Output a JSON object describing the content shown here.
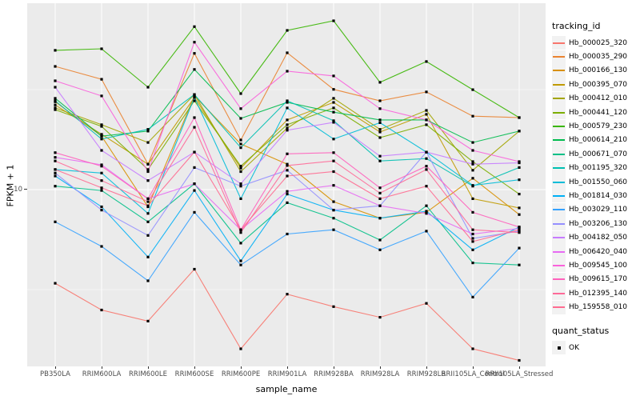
{
  "axes": {
    "x_title": "sample_name",
    "y_title": "FPKM + 1",
    "y_tick_label": "10"
  },
  "legend": {
    "tracking_title": "tracking_id",
    "quant_title": "quant_status",
    "quant_label": "OK"
  },
  "chart_data": {
    "type": "line",
    "title": "",
    "xlabel": "sample_name",
    "ylabel": "FPKM + 1",
    "y_scale": "log10",
    "y_tick_values": [
      10
    ],
    "y_minor_tick_values": [
      3.162,
      31.62
    ],
    "y_range_approx": [
      1.3,
      85
    ],
    "grid": "on",
    "legend_position": "right",
    "panel_background": "#EBEBEB",
    "point_color": "#000000",
    "point_shape": "square",
    "categories": [
      "PB350LA",
      "RRIM600LA",
      "RRIM600LE",
      "RRIM600SE",
      "RRIM600PE",
      "RRIM901LA",
      "RRIM928BA",
      "RRIM928LA",
      "RRIM928LB",
      "RRII105LA_Control",
      "RRII105LA_Stressed"
    ],
    "series": [
      {
        "name": "Hb_000025_320",
        "color": "#F8766D",
        "values": [
          3.4,
          2.5,
          2.2,
          4.0,
          1.6,
          3.0,
          2.6,
          2.3,
          2.7,
          1.6,
          1.4
        ]
      },
      {
        "name": "Hb_000035_290",
        "color": "#EA8331",
        "values": [
          41.3,
          35.6,
          13.4,
          48.0,
          17.7,
          48.3,
          31.7,
          27.8,
          30.8,
          23.3,
          22.9
        ]
      },
      {
        "name": "Hb_000166_130",
        "color": "#D89000",
        "values": [
          27.5,
          18.5,
          8.2,
          29.4,
          16.9,
          13.4,
          8.7,
          7.2,
          7.7,
          11.4,
          7.5
        ]
      },
      {
        "name": "Hb_000395_070",
        "color": "#C09B00",
        "values": [
          26.5,
          18.9,
          13.4,
          28.9,
          12.8,
          22.3,
          27.3,
          19.4,
          23.8,
          9.0,
          8.1
        ]
      },
      {
        "name": "Hb_000412_010",
        "color": "#A3A500",
        "values": [
          25.6,
          21.1,
          17.2,
          29.9,
          12.3,
          20.3,
          28.6,
          20.0,
          24.9,
          12.5,
          19.6
        ]
      },
      {
        "name": "Hb_000441_120",
        "color": "#7CAE00",
        "values": [
          25.1,
          20.7,
          12.6,
          27.8,
          13.1,
          21.1,
          25.6,
          18.2,
          21.1,
          13.8,
          9.5
        ]
      },
      {
        "name": "Hb_000579_230",
        "color": "#39B600",
        "values": [
          49.7,
          50.6,
          32.5,
          65.3,
          30.2,
          62.5,
          69.8,
          34.4,
          43.7,
          31.6,
          22.9
        ]
      },
      {
        "name": "Hb_000614_210",
        "color": "#00BB4E",
        "values": [
          28.6,
          18.5,
          19.6,
          39.9,
          22.7,
          27.3,
          24.4,
          22.3,
          22.3,
          17.2,
          19.6
        ]
      },
      {
        "name": "Hb_000671_070",
        "color": "#00C087",
        "values": [
          10.4,
          9.9,
          6.9,
          10.7,
          5.4,
          8.6,
          7.2,
          5.6,
          8.3,
          4.3,
          4.2
        ]
      },
      {
        "name": "Hb_001195_320",
        "color": "#00C0B2",
        "values": [
          27.8,
          17.9,
          20.0,
          29.9,
          16.2,
          27.8,
          22.1,
          13.9,
          14.3,
          10.4,
          12.9
        ]
      },
      {
        "name": "Hb_001550_060",
        "color": "#00BCD8",
        "values": [
          12.6,
          12.1,
          7.6,
          28.9,
          9.0,
          25.6,
          17.9,
          21.6,
          15.4,
          10.5,
          11.2
        ]
      },
      {
        "name": "Hb_001814_030",
        "color": "#00B0F6",
        "values": [
          11.7,
          8.2,
          4.6,
          9.9,
          4.4,
          9.5,
          7.9,
          7.2,
          7.8,
          5.0,
          6.5
        ]
      },
      {
        "name": "Hb_003029_110",
        "color": "#35A2FF",
        "values": [
          6.9,
          5.2,
          3.5,
          7.7,
          4.2,
          6.0,
          6.3,
          5.0,
          6.2,
          2.9,
          5.1
        ]
      },
      {
        "name": "Hb_003206_130",
        "color": "#9590FF",
        "values": [
          12.1,
          7.9,
          5.9,
          12.9,
          10.4,
          12.5,
          7.9,
          8.3,
          15.4,
          5.7,
          6.2
        ]
      },
      {
        "name": "Hb_004182_050",
        "color": "#C77CFF",
        "values": [
          32.5,
          15.7,
          11.1,
          15.4,
          10.7,
          19.8,
          21.7,
          14.7,
          15.4,
          13.4,
          13.6
        ]
      },
      {
        "name": "Hb_006420_040",
        "color": "#E76BF3",
        "values": [
          14.5,
          13.3,
          9.0,
          10.7,
          6.3,
          9.8,
          10.5,
          8.3,
          7.6,
          6.0,
          6.4
        ]
      },
      {
        "name": "Hb_009545_100",
        "color": "#FA62DB",
        "values": [
          35.0,
          29.4,
          12.3,
          54.6,
          25.4,
          39.1,
          37.0,
          25.4,
          22.3,
          15.7,
          13.8
        ]
      },
      {
        "name": "Hb_009615_170",
        "color": "#FF62BC",
        "values": [
          15.3,
          13.1,
          9.0,
          22.9,
          6.3,
          15.1,
          15.3,
          10.2,
          13.1,
          7.7,
          6.5
        ]
      },
      {
        "name": "Hb_012395_140",
        "color": "#FF6A98",
        "values": [
          13.9,
          11.1,
          8.7,
          20.5,
          6.1,
          13.2,
          13.9,
          9.6,
          12.6,
          6.3,
          6.1
        ]
      },
      {
        "name": "Hb_159558_010",
        "color": "#FF6C91",
        "values": [
          12.6,
          10.2,
          8.3,
          15.4,
          6.3,
          11.7,
          12.3,
          9.0,
          10.4,
          5.5,
          6.3
        ]
      }
    ],
    "quant_status": {
      "title": "quant_status",
      "items": [
        {
          "label": "OK",
          "marker": "black-square"
        }
      ]
    }
  }
}
